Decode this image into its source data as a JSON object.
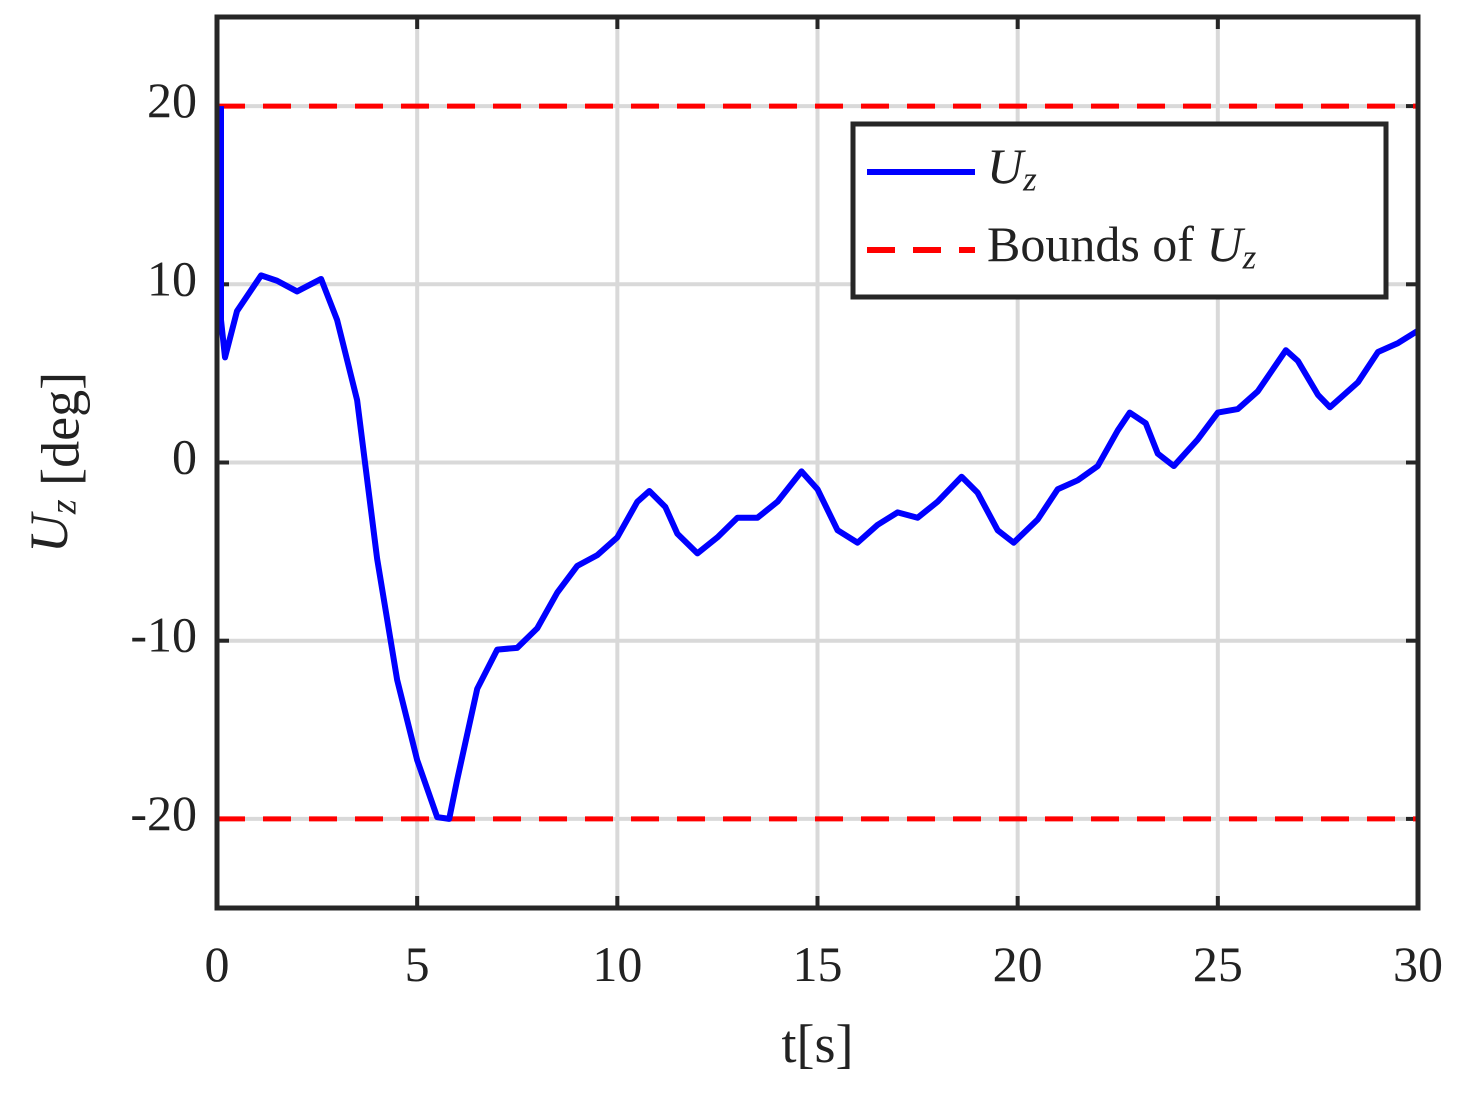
{
  "chart_data": {
    "type": "line",
    "xlabel": "t[s]",
    "ylabel": "U_z [deg]",
    "xlim": [
      0,
      30
    ],
    "ylim": [
      -25,
      25
    ],
    "xticks": [
      0,
      5,
      10,
      15,
      20,
      25,
      30
    ],
    "yticks": [
      -20,
      -10,
      0,
      10,
      20
    ],
    "grid": true,
    "legend": "upper right",
    "series": [
      {
        "name": "U_z",
        "color": "#0000ff",
        "x": [
          0.1,
          0.1,
          0.2,
          0.5,
          1.1,
          1.5,
          2.0,
          2.6,
          3.0,
          3.5,
          4.0,
          4.5,
          5.0,
          5.5,
          5.8,
          6.0,
          6.5,
          7.0,
          7.5,
          8.0,
          8.5,
          9.0,
          9.5,
          10.0,
          10.5,
          10.8,
          11.2,
          11.5,
          12.0,
          12.5,
          13.0,
          13.5,
          14.0,
          14.6,
          15.0,
          15.5,
          16.0,
          16.5,
          17.0,
          17.5,
          18.0,
          18.6,
          19.0,
          19.5,
          19.9,
          20.5,
          21.0,
          21.5,
          22.0,
          22.5,
          22.8,
          23.2,
          23.5,
          23.9,
          24.5,
          25.0,
          25.5,
          26.0,
          26.7,
          27.0,
          27.5,
          27.8,
          28.5,
          29.0,
          29.5,
          30.0
        ],
        "values": [
          20,
          8,
          5.9,
          8.5,
          10.5,
          10.2,
          9.6,
          10.3,
          8.0,
          3.5,
          -5.4,
          -12.2,
          -16.7,
          -19.9,
          -20,
          -17.8,
          -12.7,
          -10.5,
          -10.4,
          -9.3,
          -7.3,
          -5.8,
          -5.2,
          -4.2,
          -2.2,
          -1.6,
          -2.5,
          -4.0,
          -5.1,
          -4.2,
          -3.1,
          -3.1,
          -2.2,
          -0.5,
          -1.5,
          -3.8,
          -4.5,
          -3.5,
          -2.8,
          -3.1,
          -2.2,
          -0.8,
          -1.7,
          -3.8,
          -4.5,
          -3.2,
          -1.5,
          -1.0,
          -0.2,
          1.8,
          2.8,
          2.2,
          0.5,
          -0.2,
          1.3,
          2.8,
          3.0,
          4.0,
          6.3,
          5.7,
          3.8,
          3.1,
          4.5,
          6.2,
          6.7,
          7.4
        ]
      },
      {
        "name": "Bounds of U_z",
        "color": "#ff0000",
        "dashed": true,
        "hlines": [
          20,
          -20
        ]
      }
    ]
  }
}
